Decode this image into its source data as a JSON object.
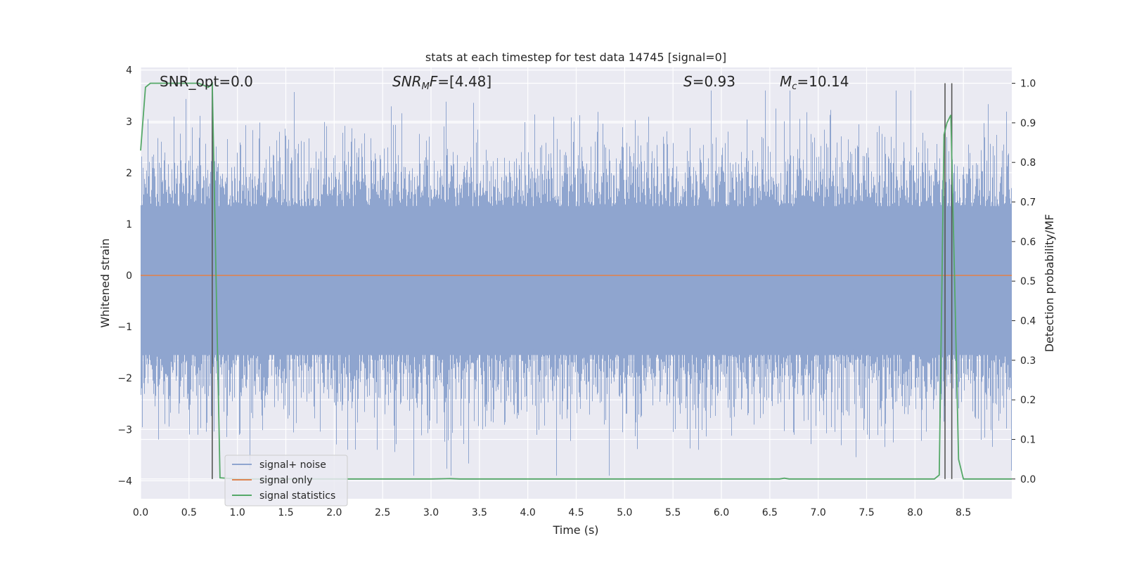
{
  "chart_data": {
    "type": "line",
    "title": "stats at each timestep for test data 14745 [signal=0]",
    "xlabel": "Time (s)",
    "ylabel": "Whitened strain",
    "y2label": "Detection probability/MF",
    "xlim": [
      0.0,
      9.0
    ],
    "ylim": [
      -4.35,
      4.05
    ],
    "y2lim": [
      -0.05,
      1.04
    ],
    "xticks": [
      "0.0",
      "0.5",
      "1.0",
      "1.5",
      "2.0",
      "2.5",
      "3.0",
      "3.5",
      "4.0",
      "4.5",
      "5.0",
      "5.5",
      "6.0",
      "6.5",
      "7.0",
      "7.5",
      "8.0",
      "8.5"
    ],
    "yticks": [
      "−4",
      "−3",
      "−2",
      "−1",
      "0",
      "1",
      "2",
      "3",
      "4"
    ],
    "y2ticks": [
      "0.0",
      "0.1",
      "0.2",
      "0.3",
      "0.4",
      "0.5",
      "0.6",
      "0.7",
      "0.8",
      "0.9",
      "1.0"
    ],
    "grid": true,
    "legend_position": "lower left",
    "annotations": {
      "snr_opt": "SNR_opt=0.0",
      "snr_mf": "=[4.48]",
      "s": "=0.93",
      "mc": "=10.14"
    },
    "series": [
      {
        "name": "signal+ noise",
        "color": "#8fa5cf",
        "axis": "left",
        "description_level": "whitened noise, amplitude roughly within ±2 with peaks to about ±3.5"
      },
      {
        "name": "signal only",
        "color": "#dd8452",
        "axis": "left",
        "x": [
          0.0,
          9.0
        ],
        "y": [
          0.0,
          0.0
        ]
      },
      {
        "name": "signal statistics",
        "color": "#55a868",
        "axis": "right",
        "x": [
          0.0,
          0.05,
          0.1,
          0.15,
          0.2,
          0.3,
          0.4,
          0.5,
          0.6,
          0.7,
          0.74,
          0.78,
          0.82,
          1.0,
          2.0,
          3.0,
          3.2,
          3.3,
          4.0,
          5.0,
          6.0,
          6.6,
          6.65,
          6.7,
          7.0,
          8.0,
          8.2,
          8.25,
          8.3,
          8.33,
          8.37,
          8.4,
          8.45,
          8.5,
          8.6,
          9.0
        ],
        "y": [
          0.83,
          0.99,
          1.0,
          1.0,
          1.0,
          1.0,
          1.0,
          1.0,
          1.0,
          0.99,
          1.0,
          0.5,
          0.003,
          0.0,
          0.0,
          0.0,
          0.001,
          0.0,
          0.0,
          0.0,
          0.0,
          0.0,
          0.002,
          0.0,
          0.0,
          0.0,
          0.0,
          0.01,
          0.87,
          0.9,
          0.92,
          0.6,
          0.05,
          0.0,
          0.0,
          0.0
        ]
      }
    ],
    "vertical_lines": [
      0.74,
      8.31,
      8.38
    ]
  }
}
